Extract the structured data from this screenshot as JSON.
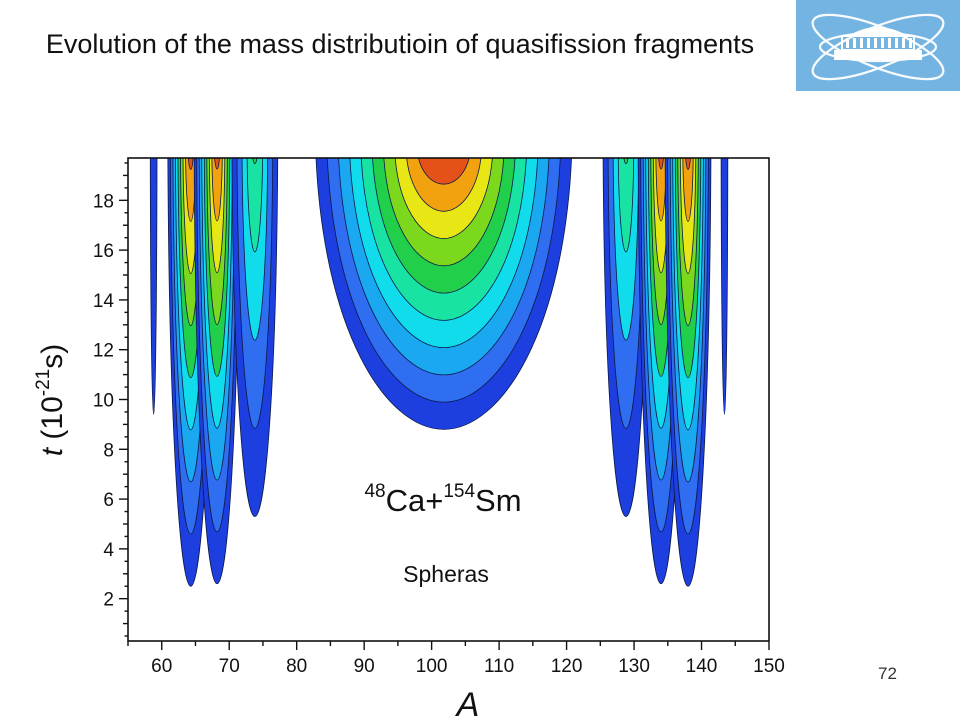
{
  "slide": {
    "title": "Evolution of the mass distributioin of quasifission fragments",
    "page_number": "72"
  },
  "colors": {
    "logo_bg": "#74b4e2",
    "levels": [
      "#1e3fe0",
      "#2f6ef0",
      "#1aa9f0",
      "#10dcec",
      "#19e3a3",
      "#22cf4a",
      "#7cd81d",
      "#e8e614",
      "#f2a20e",
      "#e4521a",
      "#b7160e"
    ]
  },
  "logo": {
    "icon": "jinr-logo-icon"
  },
  "chart_data": {
    "type": "contour",
    "title": "",
    "xlabel": "A",
    "ylabel_italic": "t",
    "ylabel_open": " (10",
    "ylabel_sup": "-21",
    "ylabel_close": "s)",
    "xlim": [
      55,
      150
    ],
    "ylim": [
      0.3,
      19.7
    ],
    "xticks": [
      "60",
      "70",
      "80",
      "90",
      "100",
      "110",
      "120",
      "130",
      "140",
      "150"
    ],
    "yticks": [
      "2",
      "4",
      "6",
      "8",
      "10",
      "12",
      "14",
      "16",
      "18"
    ],
    "reaction": {
      "a1": "48",
      "e1": "Ca+",
      "a2": "154",
      "e2": "Sm"
    },
    "note": "Spheras",
    "peaks": [
      {
        "a": 58.8,
        "t_start": 9.4,
        "half_width": 0.5,
        "levels": 1
      },
      {
        "a": 64.3,
        "t_start": 2.5,
        "half_width": 3.4,
        "levels": 9
      },
      {
        "a": 68.2,
        "t_start": 2.6,
        "half_width": 3.4,
        "levels": 9
      },
      {
        "a": 73.8,
        "t_start": 5.3,
        "half_width": 3.4,
        "levels": 5
      },
      {
        "a": 101.8,
        "t_start": 8.8,
        "half_width": 19.0,
        "levels": 11
      },
      {
        "a": 128.8,
        "t_start": 5.3,
        "half_width": 3.4,
        "levels": 5
      },
      {
        "a": 134.0,
        "t_start": 2.6,
        "half_width": 3.4,
        "levels": 9
      },
      {
        "a": 138.0,
        "t_start": 2.5,
        "half_width": 3.4,
        "levels": 9
      },
      {
        "a": 143.4,
        "t_start": 9.4,
        "half_width": 0.5,
        "levels": 1
      }
    ]
  }
}
